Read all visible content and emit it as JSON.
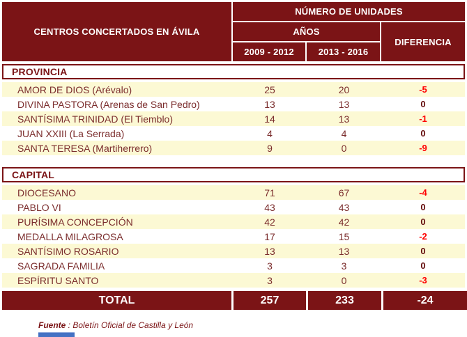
{
  "colors": {
    "maroon": "#7B1416",
    "cream": "#FCF9D4",
    "row_text": "#7B2D2D",
    "negative_red": "#FF0000",
    "zero_dark": "#640C0C",
    "artifact_blue": "#4472C4"
  },
  "header": {
    "title": "CENTROS CONCERTADOS EN ÁVILA",
    "group": "NÚMERO DE UNIDADES",
    "subgroup": "AÑOS",
    "period1": "2009 - 2012",
    "period2": "2013 - 2016",
    "difference": "DIFERENCIA"
  },
  "sections": [
    {
      "label": "PROVINCIA",
      "rows": [
        {
          "name": "AMOR DE DIOS (Arévalo)",
          "p1": "25",
          "p2": "20",
          "diff": "-5"
        },
        {
          "name": "DIVINA PASTORA (Arenas de San Pedro)",
          "p1": "13",
          "p2": "13",
          "diff": "0"
        },
        {
          "name": "SANTÍSIMA TRINIDAD (El Tiemblo)",
          "p1": "14",
          "p2": "13",
          "diff": "-1"
        },
        {
          "name": "JUAN XXIII (La Serrada)",
          "p1": "4",
          "p2": "4",
          "diff": "0"
        },
        {
          "name": "SANTA TERESA (Martiherrero)",
          "p1": "9",
          "p2": "0",
          "diff": "-9"
        }
      ]
    },
    {
      "label": "CAPITAL",
      "rows": [
        {
          "name": "DIOCESANO",
          "p1": "71",
          "p2": "67",
          "diff": "-4"
        },
        {
          "name": "PABLO VI",
          "p1": "43",
          "p2": "43",
          "diff": "0"
        },
        {
          "name": "PURÍSIMA CONCEPCIÓN",
          "p1": "42",
          "p2": "42",
          "diff": "0"
        },
        {
          "name": "MEDALLA MILAGROSA",
          "p1": "17",
          "p2": "15",
          "diff": "-2"
        },
        {
          "name": "SANTÍSIMO ROSARIO",
          "p1": "13",
          "p2": "13",
          "diff": "0"
        },
        {
          "name": "SAGRADA FAMILIA",
          "p1": "3",
          "p2": "3",
          "diff": "0"
        },
        {
          "name": "ESPÍRITU SANTO",
          "p1": "3",
          "p2": "0",
          "diff": "-3"
        }
      ]
    }
  ],
  "total": {
    "label": "TOTAL",
    "p1": "257",
    "p2": "233",
    "diff": "-24"
  },
  "source": {
    "label": "Fuente",
    "text": " : Boletín Oficial de Castilla y León"
  }
}
